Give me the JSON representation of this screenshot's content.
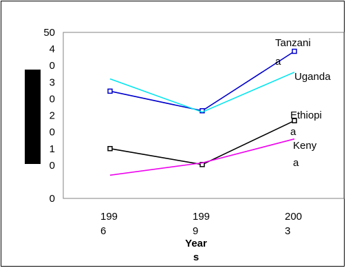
{
  "chart_data": {
    "type": "line",
    "xlabel_lines": [
      "Year",
      "s"
    ],
    "x": [
      1996,
      1999,
      2003
    ],
    "x_tick_labels": [
      [
        "199",
        "6"
      ],
      [
        "199",
        "9"
      ],
      [
        "200",
        "3"
      ]
    ],
    "y_tick_labels": [
      "50",
      "4\n0",
      "3\n0",
      "2\n0",
      "1\n0",
      "0"
    ],
    "ylim": [
      0,
      50
    ],
    "grid": false,
    "legend": "none",
    "series": [
      {
        "name": "Tanzania",
        "label_lines": [
          "Tanzani",
          "a"
        ],
        "color": "#0000cc",
        "marker": "square",
        "values": [
          32.3,
          26.4,
          44.3
        ]
      },
      {
        "name": "Uganda",
        "label_lines": [
          "Uganda"
        ],
        "color": "#00e5ee",
        "marker": "none",
        "values": [
          36,
          26,
          38
        ]
      },
      {
        "name": "Ethiopia",
        "label_lines": [
          "Ethiopi",
          "a"
        ],
        "color": "#000000",
        "marker": "square",
        "values": [
          15,
          10.2,
          23.4
        ]
      },
      {
        "name": "Kenya",
        "label_lines": [
          "Keny",
          "a"
        ],
        "color": "#ee00ee",
        "marker": "none",
        "values": [
          7,
          10.7,
          17.9
        ]
      }
    ]
  }
}
